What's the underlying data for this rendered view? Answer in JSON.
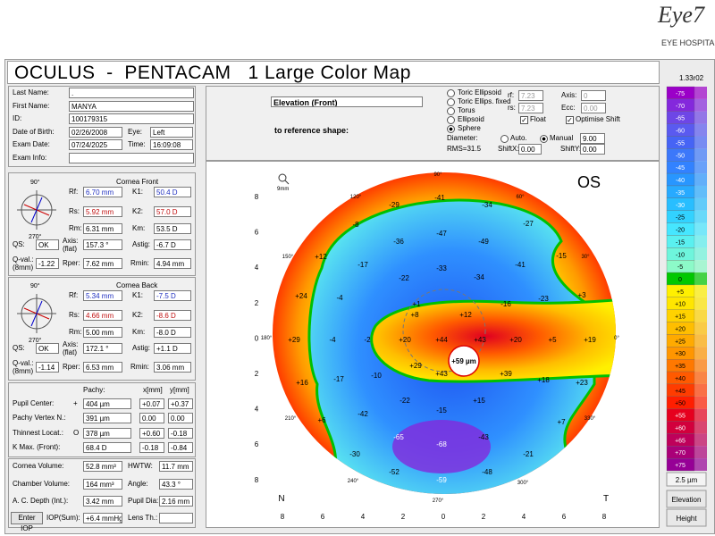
{
  "header": {
    "logo": "Eye7",
    "logo_sub": "EYE HOSPITALS",
    "title": "OCULUS  -  PENTACAM   1 Large Color Map",
    "version": "1.33r02"
  },
  "patient": {
    "fields": [
      {
        "label": "Last Name:",
        "value": "."
      },
      {
        "label": "First Name:",
        "value": "MANYA"
      },
      {
        "label": "ID:",
        "value": "100179315"
      },
      {
        "label": "Date of Birth:",
        "value": "02/26/2008"
      },
      {
        "label": "Eye:",
        "value": "Left"
      },
      {
        "label": "Exam Date:",
        "value": "07/24/2025"
      },
      {
        "label": "Time:",
        "value": "16:09:08"
      },
      {
        "label": "Exam Info:"
      }
    ]
  },
  "cornea_front": {
    "title": "Cornea Front",
    "axis_labels": [
      "90°",
      "270°"
    ],
    "fields": [
      {
        "label": "Rf:",
        "value": "6.70 mm"
      },
      {
        "label": "K1:",
        "value": "50.4 D"
      },
      {
        "label": "Rs:",
        "value": "5.92 mm"
      },
      {
        "label": "K2:",
        "value": "57.0 D"
      },
      {
        "label": "Rm:",
        "value": "6.31 mm"
      },
      {
        "label": "Km:",
        "value": "53.5 D"
      },
      {
        "label": "QS:",
        "value": "OK"
      },
      {
        "label": "Axis:",
        "sub": "(flat)",
        "value": "157.3 °"
      },
      {
        "label": "Astig:",
        "value": "-6.7 D"
      },
      {
        "label": "Q-val.:",
        "sub": "(8mm)",
        "value": "-1.22"
      },
      {
        "label": "Rper:",
        "value": "7.62 mm"
      },
      {
        "label": "Rmin:",
        "value": "4.94 mm"
      }
    ]
  },
  "cornea_back": {
    "title": "Cornea Back",
    "axis_labels": [
      "90°",
      "270°"
    ],
    "fields": [
      {
        "label": "Rf:",
        "value": "5.34 mm"
      },
      {
        "label": "K1:",
        "value": "-7.5 D"
      },
      {
        "label": "Rs:",
        "value": "4.66 mm"
      },
      {
        "label": "K2:",
        "value": "-8.6 D"
      },
      {
        "label": "Rm:",
        "value": "5.00 mm"
      },
      {
        "label": "Km:",
        "value": "-8.0 D"
      },
      {
        "label": "QS:",
        "value": "OK"
      },
      {
        "label": "Axis:",
        "sub": "(flat)",
        "value": "172.1 °"
      },
      {
        "label": "Astig:",
        "value": "+1.1 D"
      },
      {
        "label": "Q-val.:",
        "sub": "(8mm)",
        "value": "-1.14"
      },
      {
        "label": "Rper:",
        "value": "6.53 mm"
      },
      {
        "label": "Rmin:",
        "value": "3.06 mm"
      }
    ]
  },
  "pachy": {
    "headers": [
      "Pachy:",
      "x[mm]",
      "y[mm]"
    ],
    "rows": [
      {
        "label": "Pupil Center:",
        "symbol": "+",
        "values": [
          "404 µm",
          "+0.07",
          "+0.37"
        ]
      },
      {
        "label": "Pachy Vertex N.:",
        "values": [
          "391 µm",
          "0.00",
          "0.00"
        ]
      },
      {
        "label": "Thinnest Locat.:",
        "symbol": "O",
        "values": [
          "378 µm",
          "+0.60",
          "-0.18"
        ]
      },
      {
        "label": "K Max. (Front):",
        "values": [
          "68.4 D",
          "-0.18",
          "-0.84"
        ]
      }
    ]
  },
  "volume": {
    "button": "Enter IOP",
    "fields": [
      {
        "label": "Cornea Volume:",
        "value": "52.8 mm³"
      },
      {
        "label": "HWTW:",
        "value": "11.7 mm"
      },
      {
        "label": "Chamber Volume:",
        "value": "164 mm³"
      },
      {
        "label": "Angle:",
        "value": "43.3 °"
      },
      {
        "label": "A. C. Depth (Int.):",
        "value": "3.42 mm"
      },
      {
        "label": "Pupil Dia:",
        "value": "2.16 mm"
      },
      {
        "label": "IOP(Sum):",
        "value": "+6.4 mmHg"
      },
      {
        "label": "Lens Th.:"
      }
    ]
  },
  "map_controls": {
    "map_type": "Elevation (Front)",
    "reference_label": "to reference shape:",
    "shapes": [
      "Toric Ellipsoid",
      "Toric Ellips. fixed",
      "Torus",
      "Ellipsoid",
      "Sphere"
    ],
    "params": [
      {
        "label": "rf:",
        "value": "7.23"
      },
      {
        "label": "Axis:",
        "value": "0"
      },
      {
        "label": "rs:",
        "value": "7.23"
      },
      {
        "label": "Ecc:",
        "value": "0.00"
      }
    ],
    "checks": [
      "Float",
      "Optimise Shift"
    ],
    "diameter_label": "Diameter:",
    "diameter_modes": [
      "Auto.",
      "Manual"
    ],
    "diameter": "9.00",
    "rms": "RMS=31.5",
    "shifts": [
      {
        "label": "ShiftX:",
        "value": "0.00"
      },
      {
        "label": "ShiftY:",
        "value": "0.00"
      }
    ]
  },
  "map": {
    "eye": "OS",
    "zoom": "9mm",
    "y_ticks": [
      "8",
      "6",
      "4",
      "2",
      "0",
      "2",
      "4",
      "6",
      "8"
    ],
    "x_ticks": [
      "8",
      "6",
      "4",
      "2",
      "0",
      "2",
      "4",
      "6",
      "8"
    ],
    "nasal": "N",
    "temporal": "T",
    "angles": [
      "90°",
      "60°",
      "30°",
      "0°",
      "330°",
      "300°",
      "270°",
      "240°",
      "210°",
      "180°",
      "150°",
      "120°"
    ],
    "points": [
      "-41",
      "-29",
      "-34",
      "-8",
      "-27",
      "-36",
      "-47",
      "-49",
      "+12",
      "-17",
      "-15",
      "-33",
      "-41",
      "-22",
      "-34",
      "+24",
      "-4",
      "-16",
      "-23",
      "+3",
      "+1",
      "+8",
      "+12",
      "+29",
      "-4",
      "-2",
      "+20",
      "+44",
      "+43",
      "+20",
      "+5",
      "+19",
      "+29",
      "-10",
      "+43",
      "+39",
      "+18",
      "+23",
      "+16",
      "-17",
      "-22",
      "+15",
      "-15",
      "-42",
      "+7",
      "+6",
      "-65",
      "-68",
      "-43",
      "-30",
      "-21",
      "-52",
      "-48",
      "-59"
    ],
    "max_label": "+59 µm"
  },
  "scale": {
    "steps": [
      {
        "label": "-75",
        "color": "#9b00c8"
      },
      {
        "label": "-70",
        "color": "#8428dc"
      },
      {
        "label": "-65",
        "color": "#6e46e6"
      },
      {
        "label": "-60",
        "color": "#5a5af0"
      },
      {
        "label": "-55",
        "color": "#4664f5"
      },
      {
        "label": "-50",
        "color": "#3c78fa"
      },
      {
        "label": "-45",
        "color": "#3282ff"
      },
      {
        "label": "-40",
        "color": "#2896ff"
      },
      {
        "label": "-35",
        "color": "#28aaff"
      },
      {
        "label": "-30",
        "color": "#28beff"
      },
      {
        "label": "-25",
        "color": "#32d2ff"
      },
      {
        "label": "-20",
        "color": "#46e6ff"
      },
      {
        "label": "-15",
        "color": "#5af0f0"
      },
      {
        "label": "-10",
        "color": "#6ef5dc"
      },
      {
        "label": "-5",
        "color": "#8cfac8"
      },
      {
        "label": "0",
        "color": "#00c800"
      },
      {
        "label": "+5",
        "color": "#fff000"
      },
      {
        "label": "+10",
        "color": "#ffe600"
      },
      {
        "label": "+15",
        "color": "#ffd200"
      },
      {
        "label": "+20",
        "color": "#ffbe00"
      },
      {
        "label": "+25",
        "color": "#ffaa00"
      },
      {
        "label": "+30",
        "color": "#ff9600"
      },
      {
        "label": "+35",
        "color": "#ff7800"
      },
      {
        "label": "+40",
        "color": "#ff5a00"
      },
      {
        "label": "+45",
        "color": "#ff3c00"
      },
      {
        "label": "+50",
        "color": "#ff1e00"
      },
      {
        "label": "+55",
        "color": "#e6001e"
      },
      {
        "label": "+60",
        "color": "#d2003c"
      },
      {
        "label": "+65",
        "color": "#be005a"
      },
      {
        "label": "+70",
        "color": "#aa0078"
      },
      {
        "label": "+75",
        "color": "#960096"
      }
    ],
    "step": "2.5 µm",
    "modes": [
      "Elevation",
      "Height"
    ]
  }
}
